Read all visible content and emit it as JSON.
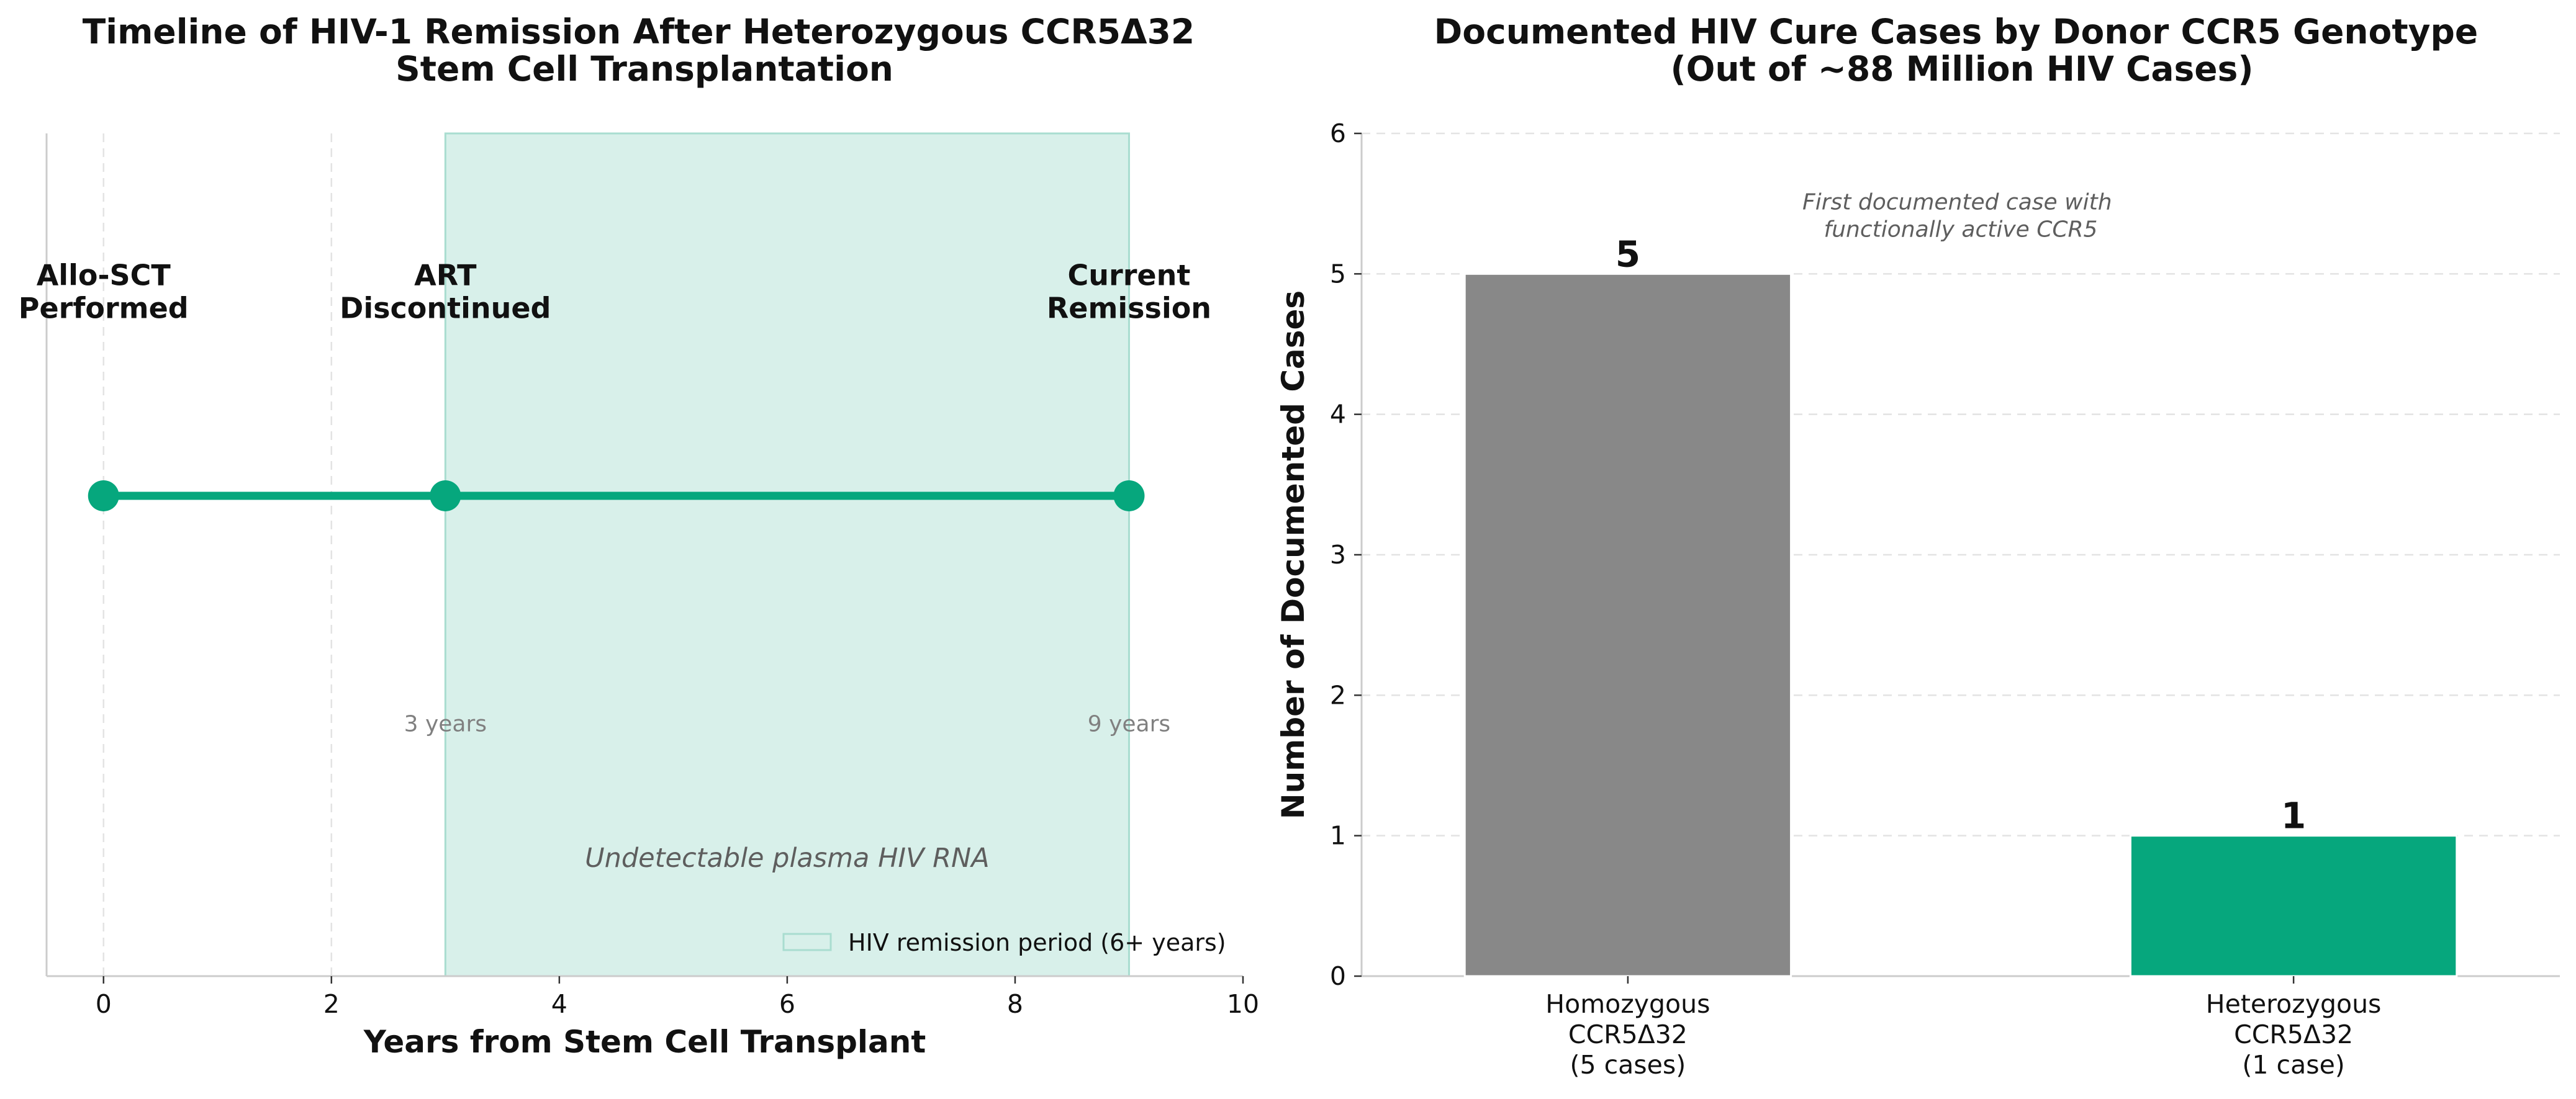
{
  "colors": {
    "accent": "#06a77d",
    "remission_fill": "#d8f0ea",
    "remission_edge": "#a9ddd0",
    "homozygous_bar": "#888888",
    "grid": "#e3e3e3",
    "spine": "#cccccc"
  },
  "chart_data": [
    {
      "type": "line",
      "title_lines": [
        "Timeline of HIV-1 Remission After Heterozygous CCR5Δ32",
        "Stem Cell Transplantation"
      ],
      "xlabel": "Years from Stem Cell Transplant",
      "ylabel": "",
      "xlim": [
        -0.5,
        10
      ],
      "ylim": [
        0,
        1
      ],
      "xticks": [
        0,
        2,
        4,
        6,
        8,
        10
      ],
      "xtick_labels": [
        "0",
        "2",
        "4",
        "6",
        "8",
        "10"
      ],
      "grid": true,
      "events": [
        {
          "x": 0,
          "label_lines": [
            "Allo-SCT",
            "Performed"
          ],
          "duration": ""
        },
        {
          "x": 3,
          "label_lines": [
            "ART",
            "Discontinued"
          ],
          "duration": "3 years"
        },
        {
          "x": 9,
          "label_lines": [
            "Current",
            "Remission"
          ],
          "duration": "9 years"
        }
      ],
      "timeline_y": 0.57,
      "event_label_y": 0.82,
      "duration_label_y": 0.3,
      "remission_span": [
        3,
        9
      ],
      "remission_note": "Undetectable plasma HIV RNA",
      "remission_note_x": 6,
      "remission_note_y": 0.14,
      "legend": {
        "label": "HIV remission period (6+ years)",
        "placement": "lower-right"
      }
    },
    {
      "type": "bar",
      "title_lines": [
        "Documented HIV Cure Cases by Donor CCR5 Genotype",
        "(Out of ~88 Million HIV Cases)"
      ],
      "categories": [
        [
          "Homozygous",
          "CCR5Δ32",
          "(5 cases)"
        ],
        [
          "Heterozygous",
          "CCR5Δ32",
          "(1 case)"
        ]
      ],
      "values": [
        5,
        1
      ],
      "value_labels": [
        "5",
        "1"
      ],
      "ylabel": "Number of Documented Cases",
      "xlabel": "",
      "ylim": [
        0,
        6
      ],
      "yticks": [
        0,
        1,
        2,
        3,
        4,
        5,
        6
      ],
      "ytick_labels": [
        "0",
        "1",
        "2",
        "3",
        "4",
        "5",
        "6"
      ],
      "grid": true,
      "annotation": {
        "lines": [
          "First documented case with",
          "functionally active CCR5"
        ],
        "x": 0.5,
        "y": 5.3
      }
    }
  ]
}
